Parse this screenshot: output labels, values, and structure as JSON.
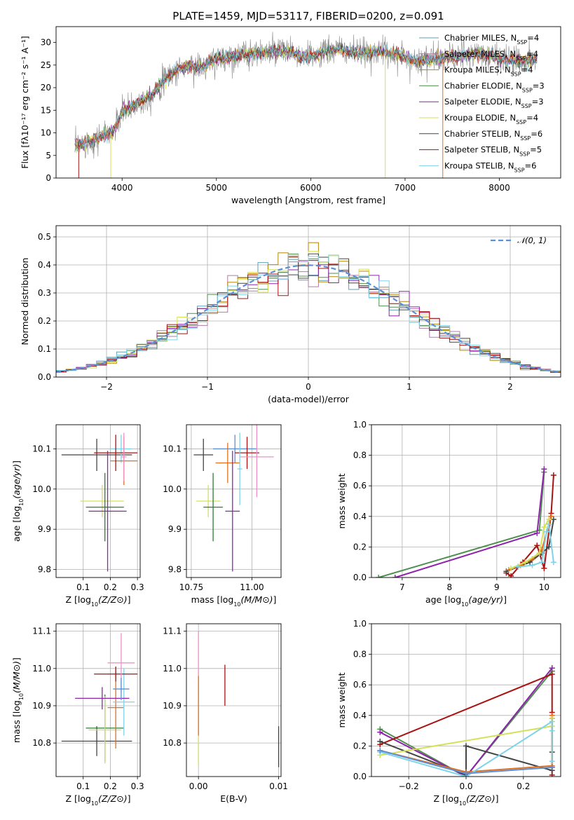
{
  "figure_title": "PLATE=1459, MJD=53117, FIBERID=0200, z=0.091",
  "colors": [
    "#5fa0b6",
    "#b07ba8",
    "#b8860b",
    "#4f8f4f",
    "#8e24aa",
    "#d4e157",
    "#444444",
    "#aa1111",
    "#7fd3e8",
    "#e07020",
    "#ef8fc8",
    "#5b8fd6",
    "#2e7d32"
  ],
  "chart_data": [
    {
      "id": "spectrum",
      "type": "line",
      "title": "PLATE=1459, MJD=53117, FIBERID=0200, z=0.091",
      "xlabel": "wavelength [Angstrom, rest frame]",
      "ylabel": "Flux [fλ10⁻¹⁷ erg cm⁻² s⁻¹ A⁻¹]",
      "xlim": [
        3300,
        8650
      ],
      "ylim": [
        0,
        33.5
      ],
      "xticks": [
        4000,
        5000,
        6000,
        7000,
        8000
      ],
      "yticks": [
        0,
        5,
        10,
        15,
        20,
        25,
        30
      ],
      "grid": false,
      "legend": "top-right",
      "continuum_wavelength": [
        3500,
        3700,
        3900,
        4000,
        4150,
        4300,
        4400,
        4550,
        4700,
        4860,
        5000,
        5200,
        5400,
        5600,
        5800,
        5900,
        6100,
        6300,
        6500,
        6700,
        6900,
        7100,
        7400,
        7600,
        7800,
        8000,
        8200,
        8400
      ],
      "continuum_flux": [
        7,
        8.5,
        10,
        14.5,
        16.5,
        18,
        20.5,
        23.5,
        25,
        24.5,
        26.5,
        27,
        27.5,
        28,
        28,
        26.5,
        27.5,
        28.5,
        27.5,
        28,
        27.5,
        26,
        26.5,
        27,
        27.5,
        26.5,
        26,
        26
      ],
      "series": [
        {
          "name": "Chabrier MILES, N",
          "sub": "SSP",
          "suffix": "=4",
          "color": "#5fa0b6"
        },
        {
          "name": "Salpeter MILES, N",
          "sub": "SSP",
          "suffix": "=4",
          "color": "#b07ba8"
        },
        {
          "name": "Kroupa MILES, N",
          "sub": "SSP",
          "suffix": "=4",
          "color": "#b8860b"
        },
        {
          "name": "Chabrier ELODIE, N",
          "sub": "SSP",
          "suffix": "=3",
          "color": "#4f8f4f"
        },
        {
          "name": "Salpeter ELODIE, N",
          "sub": "SSP",
          "suffix": "=3",
          "color": "#8e24aa"
        },
        {
          "name": "Kroupa ELODIE, N",
          "sub": "SSP",
          "suffix": "=4",
          "color": "#d4e157"
        },
        {
          "name": "Chabrier STELIB, N",
          "sub": "SSP",
          "suffix": "=6",
          "color": "#444444"
        },
        {
          "name": "Salpeter STELIB, N",
          "sub": "SSP",
          "suffix": "=5",
          "color": "#aa1111"
        },
        {
          "name": "Kroupa STELIB, N",
          "sub": "SSP",
          "suffix": "=6",
          "color": "#7fd3e8"
        }
      ]
    },
    {
      "id": "residuals",
      "type": "histogram",
      "xlabel": "(data-model)/error",
      "ylabel": "Normed distribution",
      "xlim": [
        -2.5,
        2.5
      ],
      "ylim": [
        0,
        0.54
      ],
      "xticks": [
        -2,
        -1,
        0,
        1,
        2
      ],
      "yticks": [
        0.0,
        0.1,
        0.2,
        0.3,
        0.4,
        0.5
      ],
      "grid": true,
      "legend": "top-right",
      "reference": {
        "name": "𝒩(0, 1)",
        "color": "#5b8fd6",
        "style": "dashed"
      },
      "bin_width": 0.1,
      "series_colors": [
        "#5fa0b6",
        "#b07ba8",
        "#b8860b",
        "#4f8f4f",
        "#8e24aa",
        "#d4e157",
        "#444444",
        "#aa1111",
        "#7fd3e8"
      ]
    },
    {
      "id": "age-vs-z",
      "type": "errorbar",
      "xlabel": "Z [log10(Z/Z⊙)]",
      "ylabel": "age  [log10(age/yr)]",
      "xlim": [
        0.0,
        0.31
      ],
      "ylim": [
        9.78,
        10.16
      ],
      "xticks": [
        0.1,
        0.2,
        0.3
      ],
      "yticks": [
        9.8,
        9.9,
        10.0,
        10.1
      ],
      "grid": true,
      "points": [
        {
          "x": 0.15,
          "y": 10.085,
          "xerr": 0.13,
          "yerr": 0.04,
          "color": "#444444"
        },
        {
          "x": 0.24,
          "y": 10.1,
          "xerr": 0.04,
          "yerr": 0.035,
          "color": "#7fd3e8"
        },
        {
          "x": 0.25,
          "y": 10.07,
          "xerr": 0.05,
          "yerr": 0.06,
          "color": "#e07020"
        },
        {
          "x": 0.22,
          "y": 10.09,
          "xerr": 0.08,
          "yerr": 0.045,
          "color": "#aa1111"
        },
        {
          "x": 0.17,
          "y": 9.97,
          "xerr": 0.08,
          "yerr": 0.04,
          "color": "#d4e157"
        },
        {
          "x": 0.18,
          "y": 9.955,
          "xerr": 0.07,
          "yerr": 0.085,
          "color": "#2e7d32"
        },
        {
          "x": 0.19,
          "y": 9.945,
          "xerr": 0.07,
          "yerr": 0.15,
          "color": "#8e24aa"
        },
        {
          "x": 0.25,
          "y": 10.08,
          "xerr": 0.01,
          "yerr": 0.06,
          "color": "#ef8fc8"
        }
      ]
    },
    {
      "id": "age-vs-mass",
      "type": "errorbar",
      "xlabel": "mass [log10(M/M⊙)]",
      "ylabel": "",
      "xlim": [
        10.73,
        11.12
      ],
      "ylim": [
        9.78,
        10.16
      ],
      "xticks": [
        10.75,
        11.0
      ],
      "yticks": [
        9.8,
        9.9,
        10.0,
        10.1
      ],
      "grid": true,
      "points": [
        {
          "x": 10.8,
          "y": 10.085,
          "xerr": 0.04,
          "yerr": 0.04,
          "color": "#444444"
        },
        {
          "x": 10.93,
          "y": 10.1,
          "xerr": 0.09,
          "yerr": 0.035,
          "color": "#5b8fd6"
        },
        {
          "x": 10.9,
          "y": 10.065,
          "xerr": 0.05,
          "yerr": 0.05,
          "color": "#e07020"
        },
        {
          "x": 10.98,
          "y": 10.09,
          "xerr": 0.05,
          "yerr": 0.04,
          "color": "#aa1111"
        },
        {
          "x": 10.82,
          "y": 9.97,
          "xerr": 0.05,
          "yerr": 0.04,
          "color": "#d4e157"
        },
        {
          "x": 10.84,
          "y": 9.955,
          "xerr": 0.04,
          "yerr": 0.085,
          "color": "#2e7d32"
        },
        {
          "x": 10.92,
          "y": 9.945,
          "xerr": 0.03,
          "yerr": 0.15,
          "color": "#8e24aa"
        },
        {
          "x": 11.02,
          "y": 10.08,
          "xerr": 0.07,
          "yerr": 0.1,
          "color": "#ef8fc8"
        },
        {
          "x": 10.95,
          "y": 10.05,
          "xerr": 0.01,
          "yerr": 0.09,
          "color": "#7fd3e8"
        }
      ]
    },
    {
      "id": "mass-weight-vs-age",
      "type": "line",
      "xlabel": "age  [log10(age/yr)]",
      "ylabel": "mass weight",
      "xlim": [
        6.35,
        10.35
      ],
      "ylim": [
        0.0,
        1.0
      ],
      "xticks": [
        7,
        8,
        9,
        10
      ],
      "yticks": [
        0.0,
        0.2,
        0.4,
        0.6,
        0.8,
        1.0
      ],
      "grid": true,
      "series": [
        {
          "color": "#4f8f4f",
          "x": [
            6.5,
            9.9,
            10.0
          ],
          "y": [
            0.0,
            0.31,
            0.69
          ]
        },
        {
          "color": "#8e24aa",
          "x": [
            6.85,
            9.85,
            10.0
          ],
          "y": [
            0.0,
            0.29,
            0.71
          ]
        },
        {
          "color": "#aa1111",
          "x": [
            9.2,
            9.3,
            9.55,
            9.85,
            10.0,
            10.15,
            10.2
          ],
          "y": [
            0.03,
            0.01,
            0.1,
            0.21,
            0.06,
            0.42,
            0.67
          ]
        },
        {
          "color": "#444444",
          "x": [
            9.2,
            9.45,
            9.7,
            9.95,
            10.1,
            10.2
          ],
          "y": [
            0.04,
            0.07,
            0.1,
            0.16,
            0.2,
            0.38
          ]
        },
        {
          "color": "#e07020",
          "x": [
            9.25,
            9.5,
            9.75,
            9.95,
            10.15
          ],
          "y": [
            0.05,
            0.08,
            0.12,
            0.18,
            0.4
          ]
        },
        {
          "color": "#d4e157",
          "x": [
            9.3,
            9.6,
            9.9,
            10.0,
            10.1
          ],
          "y": [
            0.06,
            0.1,
            0.16,
            0.33,
            0.38
          ]
        },
        {
          "color": "#7fd3e8",
          "x": [
            9.45,
            9.75,
            9.95,
            10.05,
            10.1,
            10.2
          ],
          "y": [
            0.07,
            0.08,
            0.1,
            0.3,
            0.35,
            0.1
          ]
        }
      ]
    },
    {
      "id": "mass-vs-z",
      "type": "errorbar",
      "xlabel": "Z [log10(Z/Z⊙)]",
      "ylabel": "mass [log10(M/M⊙)]",
      "xlim": [
        0.0,
        0.31
      ],
      "ylim": [
        10.71,
        11.12
      ],
      "xticks": [
        0.1,
        0.2,
        0.3
      ],
      "yticks": [
        10.8,
        10.9,
        11.0,
        11.1
      ],
      "grid": true,
      "points": [
        {
          "x": 0.15,
          "y": 10.805,
          "xerr": 0.13,
          "yerr": 0.04,
          "color": "#444444"
        },
        {
          "x": 0.18,
          "y": 10.84,
          "xerr": 0.07,
          "yerr": 0.09,
          "color": "#2e7d32"
        },
        {
          "x": 0.18,
          "y": 10.835,
          "xerr": 0.06,
          "yerr": 0.09,
          "color": "#d4e157"
        },
        {
          "x": 0.22,
          "y": 10.895,
          "xerr": 0.03,
          "yerr": 0.11,
          "color": "#e07020"
        },
        {
          "x": 0.25,
          "y": 10.91,
          "xerr": 0.04,
          "yerr": 0.09,
          "color": "#7fd3e8"
        },
        {
          "x": 0.22,
          "y": 10.985,
          "xerr": 0.08,
          "yerr": 0.02,
          "color": "#aa1111"
        },
        {
          "x": 0.24,
          "y": 11.015,
          "xerr": 0.05,
          "yerr": 0.08,
          "color": "#ef8fc8"
        },
        {
          "x": 0.17,
          "y": 10.92,
          "xerr": 0.1,
          "yerr": 0.03,
          "color": "#8e24aa"
        },
        {
          "x": 0.24,
          "y": 10.945,
          "xerr": 0.03,
          "yerr": 0.03,
          "color": "#5b8fd6"
        }
      ]
    },
    {
      "id": "mass-vs-ebv",
      "type": "errorbar",
      "xlabel": "E(B-V)",
      "ylabel": "",
      "xlim": [
        -0.0015,
        0.0103
      ],
      "ylim": [
        10.71,
        11.12
      ],
      "xticks": [
        0.0,
        0.01
      ],
      "yticks": [
        10.8,
        10.9,
        11.0,
        11.1
      ],
      "grid": true,
      "points": [
        {
          "x": 0.0,
          "y": 11.01,
          "xerr": 0.0,
          "yerr": 0.09,
          "color": "#ef8fc8"
        },
        {
          "x": 0.0,
          "y": 10.84,
          "xerr": 0.0,
          "yerr": 0.1,
          "color": "#d4e157"
        },
        {
          "x": 0.0,
          "y": 10.9,
          "xerr": 0.0,
          "yerr": 0.08,
          "color": "#e07020"
        },
        {
          "x": 0.0033,
          "y": 10.955,
          "xerr": 0.0,
          "yerr": 0.055,
          "color": "#aa1111"
        },
        {
          "x": 0.01,
          "y": 10.79,
          "xerr": 0.0,
          "yerr": 0.055,
          "color": "#444444"
        }
      ]
    },
    {
      "id": "mass-weight-vs-z",
      "type": "line",
      "xlabel": "Z [log10(Z/Z⊙)]",
      "ylabel": "mass weight",
      "xlim": [
        -0.33,
        0.33
      ],
      "ylim": [
        0.0,
        1.0
      ],
      "xticks": [
        -0.2,
        0.0,
        0.2
      ],
      "yticks": [
        0.0,
        0.2,
        0.4,
        0.6,
        0.8,
        1.0
      ],
      "grid": true,
      "series": [
        {
          "color": "#4f8f4f",
          "x": [
            -0.3,
            0.0,
            0.3,
            0.3
          ],
          "y": [
            0.31,
            0.0,
            0.69,
            0.69
          ]
        },
        {
          "color": "#8e24aa",
          "x": [
            -0.3,
            0.0,
            0.3,
            0.3
          ],
          "y": [
            0.29,
            0.0,
            0.71,
            0.71
          ]
        },
        {
          "color": "#aa1111",
          "x": [
            -0.3,
            0.3,
            0.3,
            0.3,
            0.3
          ],
          "y": [
            0.21,
            0.67,
            0.42,
            0.06,
            0.01
          ]
        },
        {
          "color": "#444444",
          "x": [
            -0.3,
            0.0,
            0.0,
            0.3,
            0.3,
            0.3
          ],
          "y": [
            0.23,
            0.01,
            0.2,
            0.04,
            0.38,
            0.16
          ]
        },
        {
          "color": "#e07020",
          "x": [
            -0.3,
            0.0,
            0.3,
            0.3
          ],
          "y": [
            0.17,
            0.03,
            0.07,
            0.4
          ]
        },
        {
          "color": "#d4e157",
          "x": [
            -0.3,
            0.3,
            0.3
          ],
          "y": [
            0.14,
            0.33,
            0.38
          ]
        },
        {
          "color": "#7fd3e8",
          "x": [
            -0.3,
            0.0,
            0.3,
            0.3,
            0.3
          ],
          "y": [
            0.16,
            0.0,
            0.36,
            0.1,
            0.3
          ]
        },
        {
          "color": "#5b8fd6",
          "x": [
            -0.3,
            0.0,
            0.3
          ],
          "y": [
            0.17,
            0.02,
            0.06
          ]
        }
      ]
    }
  ]
}
